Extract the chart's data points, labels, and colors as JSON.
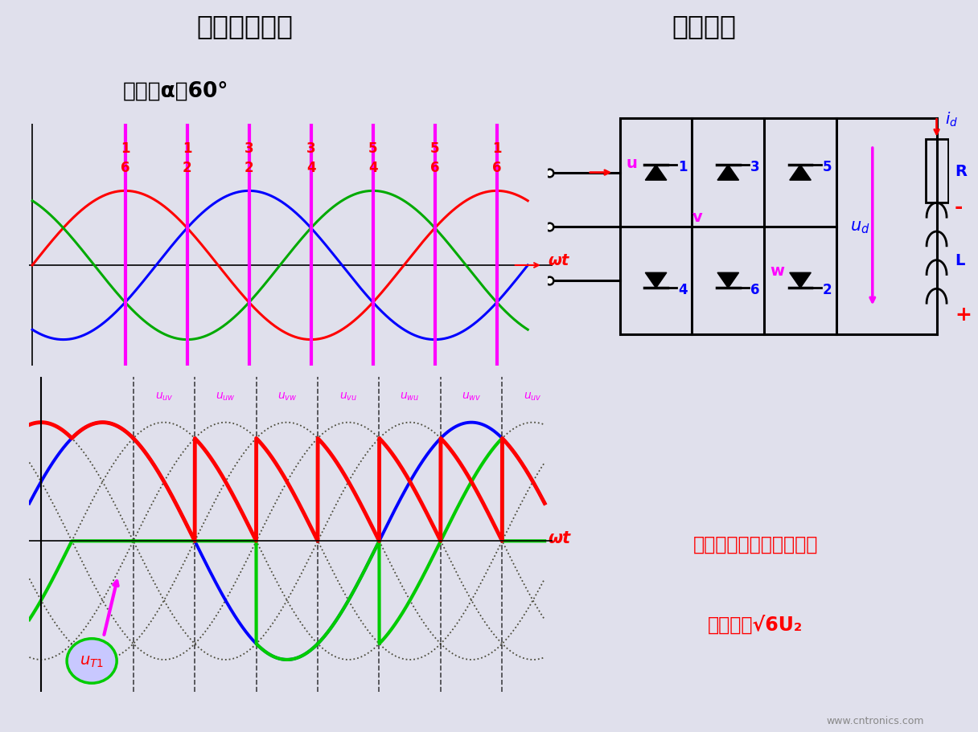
{
  "title_left": "三相全控桥式",
  "title_right": "工作原理",
  "title_bg": "#b0b8d0",
  "bg_color": "#e0e0ec",
  "control_angle_text": "控制角α＝60°",
  "control_box_bg": "#ffa500",
  "upper_plot_bg": "#ffffff",
  "lower_plot_bg": "#ffffff",
  "teal_border": "#00c8a0",
  "phase_u_color": "#ff0000",
  "phase_v_color": "#0000ff",
  "phase_w_color": "#00aa00",
  "trigger_color": "#ff00ff",
  "upper_labels_top": [
    "1",
    "1",
    "3",
    "3",
    "5",
    "5",
    "1"
  ],
  "upper_labels_bot": [
    "6",
    "2",
    "2",
    "4",
    "4",
    "6",
    "6"
  ],
  "omega_t_color": "#ff0000",
  "lower_label_color": "#ff00ff",
  "uT1_label_color": "#ff0000",
  "uT1_ellipse_border": "#00cc00",
  "uT1_ellipse_bg": "#c8c8ff",
  "blue_color": "#0000ff",
  "magenta_color": "#ff00ff",
  "red_color": "#ff0000",
  "green_color": "#00cc00",
  "dark_dot_color": "#1a1a00",
  "info_box_bg": "#f5e6c8",
  "info_text": [
    "晶闸管承受的最大正、反",
    "向压降为√6U₂"
  ],
  "website": "www.cntronics.com"
}
